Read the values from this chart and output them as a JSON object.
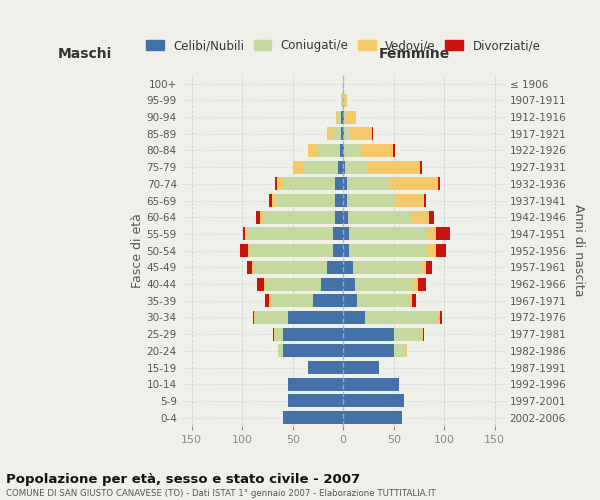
{
  "age_groups": [
    "100+",
    "95-99",
    "90-94",
    "85-89",
    "80-84",
    "75-79",
    "70-74",
    "65-69",
    "60-64",
    "55-59",
    "50-54",
    "45-49",
    "40-44",
    "35-39",
    "30-34",
    "25-29",
    "20-24",
    "15-19",
    "10-14",
    "5-9",
    "0-4"
  ],
  "birth_years": [
    "≤ 1906",
    "1907-1911",
    "1912-1916",
    "1917-1921",
    "1922-1926",
    "1927-1931",
    "1932-1936",
    "1937-1941",
    "1942-1946",
    "1947-1951",
    "1952-1956",
    "1957-1961",
    "1962-1966",
    "1967-1971",
    "1972-1976",
    "1977-1981",
    "1982-1986",
    "1987-1991",
    "1992-1996",
    "1997-2001",
    "2002-2006"
  ],
  "males": {
    "celibi": [
      0,
      0,
      2,
      2,
      3,
      5,
      8,
      8,
      8,
      10,
      10,
      16,
      22,
      30,
      55,
      60,
      60,
      35,
      55,
      55,
      60
    ],
    "coniugati": [
      0,
      1,
      3,
      8,
      22,
      35,
      52,
      60,
      70,
      85,
      82,
      72,
      55,
      42,
      32,
      8,
      5,
      0,
      0,
      0,
      0
    ],
    "vedovi": [
      0,
      1,
      2,
      6,
      10,
      10,
      6,
      3,
      4,
      2,
      2,
      2,
      1,
      1,
      1,
      1,
      0,
      0,
      0,
      0,
      0
    ],
    "divorziati": [
      0,
      0,
      0,
      0,
      0,
      0,
      2,
      2,
      4,
      2,
      8,
      5,
      7,
      4,
      1,
      1,
      0,
      0,
      0,
      0,
      0
    ]
  },
  "females": {
    "nubili": [
      0,
      0,
      1,
      1,
      1,
      2,
      4,
      4,
      5,
      6,
      6,
      10,
      12,
      14,
      22,
      50,
      50,
      35,
      55,
      60,
      58
    ],
    "coniugate": [
      0,
      0,
      2,
      5,
      18,
      22,
      42,
      48,
      62,
      78,
      78,
      68,
      58,
      52,
      72,
      28,
      12,
      0,
      0,
      0,
      0
    ],
    "vedove": [
      1,
      4,
      10,
      22,
      30,
      52,
      48,
      28,
      18,
      8,
      8,
      4,
      4,
      2,
      2,
      1,
      1,
      0,
      0,
      0,
      0
    ],
    "divorziate": [
      0,
      0,
      0,
      1,
      2,
      2,
      2,
      2,
      5,
      14,
      10,
      6,
      8,
      4,
      2,
      1,
      0,
      0,
      0,
      0,
      0
    ]
  },
  "colors": {
    "celibi": "#4472a8",
    "coniugati": "#c5d8a0",
    "vedovi": "#f5c96a",
    "divorziati": "#cc1111"
  },
  "title": "Popolazione per età, sesso e stato civile - 2007",
  "subtitle": "COMUNE DI SAN GIUSTO CANAVESE (TO) - Dati ISTAT 1° gennaio 2007 - Elaborazione TUTTITALIA.IT",
  "xlabel_left": "Maschi",
  "xlabel_right": "Femmine",
  "ylabel_left": "Fasce di età",
  "ylabel_right": "Anni di nascita",
  "legend_labels": [
    "Celibi/Nubili",
    "Coniugati/e",
    "Vedovi/e",
    "Divorziati/e"
  ],
  "xlim": 160,
  "bg_color": "#f0f0eb",
  "grid_color": "#cccccc"
}
